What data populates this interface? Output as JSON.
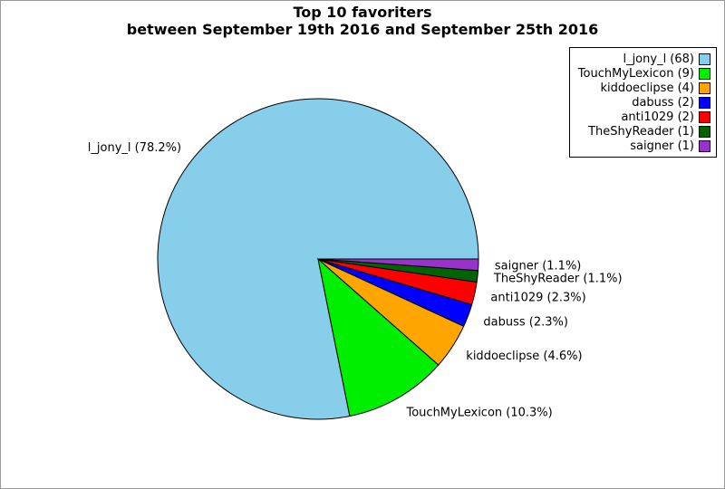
{
  "figure": {
    "title_line1": "Top 10 favoriters",
    "title_line2": "between September 19th 2016 and September 25th 2016"
  },
  "chart_data": {
    "type": "pie",
    "title": "Top 10 favoriters\nbetween September 19th 2016 and September 25th 2016",
    "total": 87,
    "start_angle_deg": 0,
    "counterclockwise": true,
    "legend_position": "upper right",
    "legend_marker_side": "right",
    "background_color": "#ffffff",
    "edge_color": "#000000",
    "slices": [
      {
        "name": "l_jony_l",
        "count": 68,
        "pct": 78.2,
        "color": "#87CEEB",
        "pie_label": "l_jony_l (78.2%)",
        "legend_label": "l_jony_l (68)"
      },
      {
        "name": "TouchMyLexicon",
        "count": 9,
        "pct": 10.3,
        "color": "#00EE00",
        "pie_label": "TouchMyLexicon (10.3%)",
        "legend_label": "TouchMyLexicon (9)"
      },
      {
        "name": "kiddoeclipse",
        "count": 4,
        "pct": 4.6,
        "color": "#FFA500",
        "pie_label": "kiddoeclipse (4.6%)",
        "legend_label": "kiddoeclipse (4)"
      },
      {
        "name": "dabuss",
        "count": 2,
        "pct": 2.3,
        "color": "#0000FF",
        "pie_label": "dabuss (2.3%)",
        "legend_label": "dabuss (2)"
      },
      {
        "name": "anti1029",
        "count": 2,
        "pct": 2.3,
        "color": "#FF0000",
        "pie_label": "anti1029 (2.3%)",
        "legend_label": "anti1029 (2)"
      },
      {
        "name": "TheShyReader",
        "count": 1,
        "pct": 1.1,
        "color": "#006400",
        "pie_label": "TheShyReader (1.1%)",
        "legend_label": "TheShyReader (1)"
      },
      {
        "name": "saigner",
        "count": 1,
        "pct": 1.1,
        "color": "#9932CC",
        "pie_label": "saigner (1.1%)",
        "legend_label": "saigner (1)"
      }
    ]
  }
}
